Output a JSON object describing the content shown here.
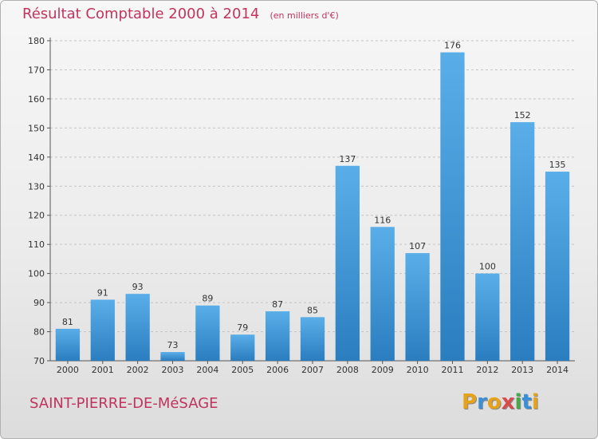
{
  "header": {
    "title": "Résultat Comptable 2000 à 2014",
    "unit": "(en milliers d'€)"
  },
  "place": {
    "name": "SAINT-PIERRE-DE-MéSAGE"
  },
  "brand": {
    "name": "Proxiti",
    "letters": [
      "P",
      "r",
      "o",
      "x",
      "i",
      "t",
      "i"
    ],
    "letter_colors": [
      "#e8a21a",
      "#3a8fd8",
      "#e8a21a",
      "#d94b4b",
      "#4aa84a",
      "#3a8fd8",
      "#e8a21a"
    ]
  },
  "colors": {
    "title": "#c0345e",
    "bar_light": "#5aaee8",
    "bar_dark": "#2a7ec0"
  },
  "chart_data": {
    "type": "bar",
    "title": "Résultat Comptable 2000 à 2014",
    "subtitle": "(en milliers d'€)",
    "categories": [
      "2000",
      "2001",
      "2002",
      "2003",
      "2004",
      "2005",
      "2006",
      "2007",
      "2008",
      "2009",
      "2010",
      "2011",
      "2012",
      "2013",
      "2014"
    ],
    "values": [
      81,
      91,
      93,
      73,
      89,
      79,
      87,
      85,
      137,
      116,
      107,
      176,
      100,
      152,
      135
    ],
    "ylim": [
      70,
      180
    ],
    "yticks": [
      70,
      80,
      90,
      100,
      110,
      120,
      130,
      140,
      150,
      160,
      170,
      180
    ],
    "xlabel": "",
    "ylabel": "",
    "grid": "horizontal-dashed",
    "data_labels": true
  }
}
